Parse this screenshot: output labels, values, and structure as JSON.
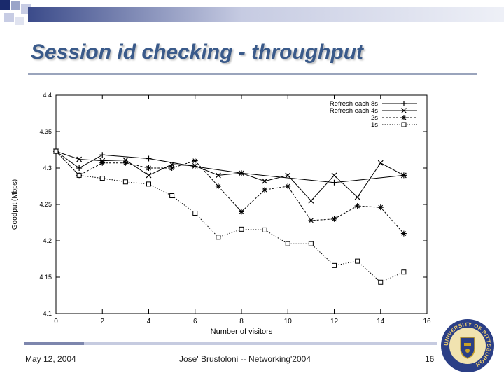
{
  "slide": {
    "title": "Session id checking - throughput",
    "footer_date": "May 12, 2004",
    "footer_center": "Jose' Brustoloni -- Networking'2004",
    "page_number": "16",
    "logo_text": "UNIVERSITY OF PITTSBURGH",
    "accent_color": "#3a5a8a"
  },
  "chart_data": {
    "type": "line",
    "xlabel": "Number of visitors",
    "ylabel": "Goodput (Mbps)",
    "xlim": [
      0,
      16
    ],
    "ylim": [
      4.1,
      4.4
    ],
    "xticks": [
      "0",
      "2",
      "4",
      "6",
      "8",
      "10",
      "12",
      "14",
      "16"
    ],
    "yticks": [
      "4.1",
      "4.15",
      "4.2",
      "4.25",
      "4.3",
      "4.35",
      "4.4"
    ],
    "legend_position": "top-right",
    "series": [
      {
        "name": "Refresh each 8s",
        "marker": "plus",
        "x": [
          0,
          1,
          2,
          4,
          6,
          8,
          12,
          15
        ],
        "y": [
          4.323,
          4.3,
          4.318,
          4.313,
          4.302,
          4.293,
          4.28,
          4.29
        ]
      },
      {
        "name": "Refresh each 4s",
        "marker": "x",
        "x": [
          0,
          1,
          2,
          3,
          4,
          5,
          6,
          7,
          8,
          9,
          10,
          11,
          12,
          13,
          14,
          15
        ],
        "y": [
          4.323,
          4.312,
          4.31,
          4.311,
          4.29,
          4.305,
          4.303,
          4.29,
          4.293,
          4.282,
          4.29,
          4.255,
          4.29,
          4.26,
          4.307,
          4.29
        ]
      },
      {
        "name": "2s",
        "marker": "star",
        "x": [
          0,
          1,
          2,
          3,
          4,
          5,
          6,
          7,
          8,
          9,
          10,
          11,
          12,
          13,
          14,
          15
        ],
        "y": [
          4.323,
          4.29,
          4.307,
          4.307,
          4.3,
          4.3,
          4.31,
          4.275,
          4.24,
          4.27,
          4.275,
          4.228,
          4.23,
          4.248,
          4.246,
          4.21
        ]
      },
      {
        "name": "1s",
        "marker": "square",
        "x": [
          0,
          1,
          2,
          3,
          4,
          5,
          6,
          7,
          8,
          9,
          10,
          11,
          12,
          13,
          14,
          15
        ],
        "y": [
          4.323,
          4.29,
          4.286,
          4.281,
          4.278,
          4.262,
          4.238,
          4.205,
          4.216,
          4.215,
          4.196,
          4.196,
          4.166,
          4.172,
          4.143,
          4.157
        ]
      }
    ]
  }
}
